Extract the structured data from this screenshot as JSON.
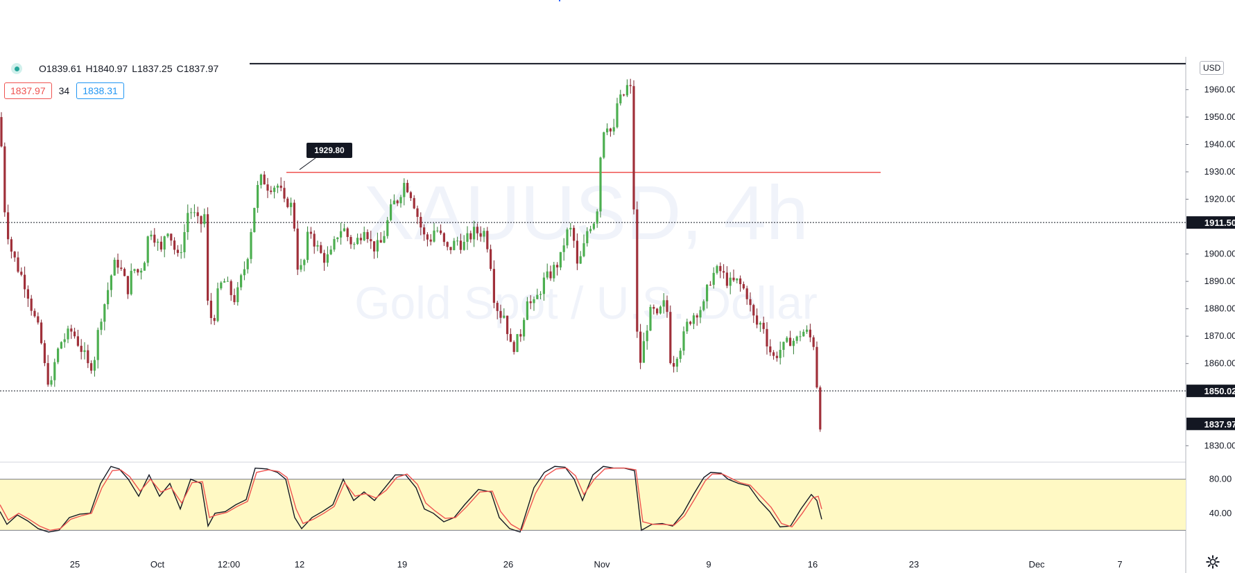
{
  "legend": {
    "open": "O1839.61",
    "high": "H1840.97",
    "low": "L1837.25",
    "close": "C1837.97"
  },
  "quote": {
    "sell": "1837.97",
    "spread": "34",
    "buy": "1838.31"
  },
  "currency_button": "USD",
  "watermark": {
    "symbol": "XAUUSD, 4h",
    "description": "Gold Spot / U.S. Dollar"
  },
  "annotation": {
    "label": "1929.80"
  },
  "price_axis": {
    "ticks": [
      "1960.00",
      "1950.00",
      "1940.00",
      "1930.00",
      "1920.00",
      "1900.00",
      "1890.00",
      "1880.00",
      "1870.00",
      "1860.00",
      "1830.00"
    ],
    "labels": [
      {
        "text": "1911.50",
        "price": 1911.5
      },
      {
        "text": "1850.02",
        "price": 1850.02
      },
      {
        "text": "1837.97",
        "price": 1837.97
      }
    ]
  },
  "osc_axis": {
    "ticks": [
      "80.00",
      "40.00"
    ]
  },
  "time_axis": {
    "labels": [
      "25",
      "Oct",
      "12:00",
      "12",
      "19",
      "26",
      "Nov",
      "9",
      "16",
      "23",
      "Dec",
      "7"
    ]
  },
  "colors": {
    "up": "#26a69a",
    "down": "#ef5350",
    "candle_body_up": "#4caf50",
    "candle_body_down": "#a0303a",
    "band_fill": "#fff9c4",
    "stoch_k": "#131722",
    "stoch_d": "#ef5350",
    "hline_red": "#ef5350"
  },
  "chart_data": {
    "type": "candlestick",
    "price_range": [
      1824,
      1972
    ],
    "osc_range": [
      0,
      100
    ],
    "osc_band": [
      20,
      80
    ],
    "resistance_level": 1929.8,
    "dotted_levels": [
      1911.5,
      1850.02
    ],
    "top_line_level": 1969.5,
    "close_key": [
      [
        0,
        1950
      ],
      [
        6,
        1918
      ],
      [
        14,
        1903
      ],
      [
        24,
        1896
      ],
      [
        38,
        1888
      ],
      [
        48,
        1878
      ],
      [
        58,
        1870
      ],
      [
        66,
        1856
      ],
      [
        74,
        1852
      ],
      [
        80,
        1862
      ],
      [
        88,
        1868
      ],
      [
        96,
        1870
      ],
      [
        104,
        1872
      ],
      [
        112,
        1868
      ],
      [
        120,
        1864
      ],
      [
        128,
        1858
      ],
      [
        136,
        1862
      ],
      [
        144,
        1876
      ],
      [
        152,
        1883
      ],
      [
        160,
        1892
      ],
      [
        168,
        1898
      ],
      [
        176,
        1893
      ],
      [
        184,
        1887
      ],
      [
        192,
        1895
      ],
      [
        200,
        1893
      ],
      [
        208,
        1898
      ],
      [
        216,
        1910
      ],
      [
        224,
        1906
      ],
      [
        232,
        1900
      ],
      [
        240,
        1911
      ],
      [
        248,
        1905
      ],
      [
        256,
        1898
      ],
      [
        264,
        1905
      ],
      [
        272,
        1917
      ],
      [
        280,
        1914
      ],
      [
        288,
        1910
      ],
      [
        296,
        1915
      ],
      [
        300,
        1878
      ],
      [
        308,
        1876
      ],
      [
        316,
        1888
      ],
      [
        324,
        1890
      ],
      [
        332,
        1886
      ],
      [
        340,
        1883
      ],
      [
        348,
        1891
      ],
      [
        356,
        1898
      ],
      [
        364,
        1913
      ],
      [
        370,
        1923
      ],
      [
        378,
        1928
      ],
      [
        386,
        1925
      ],
      [
        394,
        1925
      ],
      [
        402,
        1925
      ],
      [
        410,
        1918
      ],
      [
        418,
        1920
      ],
      [
        426,
        1908
      ],
      [
        430,
        1893
      ],
      [
        438,
        1896
      ],
      [
        446,
        1910
      ],
      [
        454,
        1904
      ],
      [
        462,
        1900
      ],
      [
        470,
        1898
      ],
      [
        478,
        1900
      ],
      [
        486,
        1907
      ],
      [
        494,
        1910
      ],
      [
        502,
        1906
      ],
      [
        510,
        1903
      ],
      [
        518,
        1906
      ],
      [
        526,
        1911
      ],
      [
        534,
        1904
      ],
      [
        542,
        1902
      ],
      [
        550,
        1904
      ],
      [
        558,
        1911
      ],
      [
        566,
        1918
      ],
      [
        574,
        1920
      ],
      [
        582,
        1926
      ],
      [
        590,
        1924
      ],
      [
        598,
        1918
      ],
      [
        604,
        1912
      ],
      [
        612,
        1906
      ],
      [
        620,
        1905
      ],
      [
        628,
        1910
      ],
      [
        636,
        1906
      ],
      [
        644,
        1901
      ],
      [
        652,
        1903
      ],
      [
        660,
        1905
      ],
      [
        668,
        1903
      ],
      [
        676,
        1906
      ],
      [
        684,
        1908
      ],
      [
        692,
        1908
      ],
      [
        700,
        1908
      ],
      [
        708,
        1896
      ],
      [
        712,
        1885
      ],
      [
        720,
        1878
      ],
      [
        728,
        1878
      ],
      [
        736,
        1866
      ],
      [
        744,
        1867
      ],
      [
        752,
        1872
      ],
      [
        760,
        1885
      ],
      [
        768,
        1880
      ],
      [
        776,
        1885
      ],
      [
        784,
        1890
      ],
      [
        792,
        1892
      ],
      [
        800,
        1895
      ],
      [
        808,
        1898
      ],
      [
        814,
        1905
      ],
      [
        820,
        1909
      ],
      [
        826,
        1908
      ],
      [
        832,
        1895
      ],
      [
        840,
        1900
      ],
      [
        848,
        1910
      ],
      [
        856,
        1912
      ],
      [
        862,
        1918
      ],
      [
        868,
        1945
      ],
      [
        876,
        1948
      ],
      [
        884,
        1942
      ],
      [
        890,
        1955
      ],
      [
        898,
        1957
      ],
      [
        906,
        1962
      ],
      [
        912,
        1958
      ],
      [
        916,
        1876
      ],
      [
        924,
        1860
      ],
      [
        932,
        1873
      ],
      [
        940,
        1880
      ],
      [
        948,
        1876
      ],
      [
        956,
        1882
      ],
      [
        962,
        1879
      ],
      [
        968,
        1858
      ],
      [
        976,
        1864
      ],
      [
        984,
        1868
      ],
      [
        992,
        1875
      ],
      [
        1000,
        1878
      ],
      [
        1008,
        1880
      ],
      [
        1016,
        1881
      ],
      [
        1022,
        1890
      ],
      [
        1030,
        1893
      ],
      [
        1038,
        1894
      ],
      [
        1046,
        1891
      ],
      [
        1054,
        1889
      ],
      [
        1062,
        1890
      ],
      [
        1070,
        1888
      ],
      [
        1078,
        1885
      ],
      [
        1084,
        1878
      ],
      [
        1092,
        1874
      ],
      [
        1100,
        1875
      ],
      [
        1108,
        1866
      ],
      [
        1116,
        1862
      ],
      [
        1124,
        1865
      ],
      [
        1132,
        1866
      ],
      [
        1140,
        1869
      ],
      [
        1148,
        1868
      ],
      [
        1156,
        1872
      ],
      [
        1164,
        1871
      ],
      [
        1172,
        1868
      ],
      [
        1176,
        1866
      ],
      [
        1180,
        1839
      ],
      [
        1184,
        1838
      ]
    ],
    "stoch_k": [
      [
        0,
        42
      ],
      [
        10,
        27
      ],
      [
        25,
        38
      ],
      [
        40,
        31
      ],
      [
        55,
        22
      ],
      [
        70,
        18
      ],
      [
        85,
        20
      ],
      [
        100,
        35
      ],
      [
        115,
        39
      ],
      [
        130,
        40
      ],
      [
        145,
        75
      ],
      [
        160,
        95
      ],
      [
        172,
        92
      ],
      [
        185,
        80
      ],
      [
        200,
        60
      ],
      [
        215,
        85
      ],
      [
        230,
        60
      ],
      [
        245,
        75
      ],
      [
        260,
        45
      ],
      [
        275,
        80
      ],
      [
        290,
        75
      ],
      [
        300,
        25
      ],
      [
        310,
        40
      ],
      [
        325,
        42
      ],
      [
        340,
        50
      ],
      [
        355,
        56
      ],
      [
        368,
        93
      ],
      [
        385,
        92
      ],
      [
        400,
        88
      ],
      [
        412,
        80
      ],
      [
        425,
        35
      ],
      [
        435,
        22
      ],
      [
        450,
        35
      ],
      [
        465,
        42
      ],
      [
        480,
        50
      ],
      [
        495,
        80
      ],
      [
        510,
        55
      ],
      [
        525,
        65
      ],
      [
        540,
        55
      ],
      [
        555,
        70
      ],
      [
        570,
        85
      ],
      [
        585,
        85
      ],
      [
        600,
        70
      ],
      [
        612,
        45
      ],
      [
        625,
        40
      ],
      [
        640,
        30
      ],
      [
        655,
        35
      ],
      [
        670,
        50
      ],
      [
        690,
        68
      ],
      [
        708,
        65
      ],
      [
        720,
        35
      ],
      [
        735,
        22
      ],
      [
        750,
        18
      ],
      [
        770,
        70
      ],
      [
        785,
        88
      ],
      [
        800,
        95
      ],
      [
        815,
        94
      ],
      [
        828,
        80
      ],
      [
        840,
        55
      ],
      [
        855,
        85
      ],
      [
        870,
        95
      ],
      [
        885,
        93
      ],
      [
        900,
        93
      ],
      [
        915,
        90
      ],
      [
        925,
        20
      ],
      [
        940,
        27
      ],
      [
        955,
        28
      ],
      [
        970,
        25
      ],
      [
        985,
        40
      ],
      [
        1000,
        62
      ],
      [
        1015,
        82
      ],
      [
        1025,
        88
      ],
      [
        1040,
        87
      ],
      [
        1050,
        80
      ],
      [
        1065,
        75
      ],
      [
        1080,
        72
      ],
      [
        1095,
        55
      ],
      [
        1110,
        42
      ],
      [
        1125,
        24
      ],
      [
        1140,
        25
      ],
      [
        1155,
        45
      ],
      [
        1170,
        62
      ],
      [
        1178,
        55
      ],
      [
        1185,
        33
      ]
    ],
    "stoch_d": [
      [
        0,
        50
      ],
      [
        12,
        32
      ],
      [
        27,
        40
      ],
      [
        42,
        33
      ],
      [
        57,
        25
      ],
      [
        72,
        20
      ],
      [
        87,
        22
      ],
      [
        102,
        33
      ],
      [
        117,
        37
      ],
      [
        132,
        40
      ],
      [
        147,
        70
      ],
      [
        162,
        90
      ],
      [
        174,
        91
      ],
      [
        187,
        83
      ],
      [
        202,
        66
      ],
      [
        217,
        80
      ],
      [
        232,
        65
      ],
      [
        247,
        70
      ],
      [
        262,
        52
      ],
      [
        277,
        76
      ],
      [
        292,
        77
      ],
      [
        302,
        35
      ],
      [
        312,
        38
      ],
      [
        327,
        41
      ],
      [
        342,
        48
      ],
      [
        357,
        54
      ],
      [
        370,
        88
      ],
      [
        387,
        91
      ],
      [
        402,
        89
      ],
      [
        414,
        82
      ],
      [
        427,
        45
      ],
      [
        437,
        28
      ],
      [
        452,
        33
      ],
      [
        467,
        40
      ],
      [
        482,
        48
      ],
      [
        497,
        76
      ],
      [
        512,
        60
      ],
      [
        527,
        63
      ],
      [
        542,
        58
      ],
      [
        557,
        67
      ],
      [
        572,
        82
      ],
      [
        587,
        86
      ],
      [
        602,
        74
      ],
      [
        614,
        52
      ],
      [
        627,
        43
      ],
      [
        642,
        34
      ],
      [
        657,
        35
      ],
      [
        672,
        47
      ],
      [
        692,
        65
      ],
      [
        710,
        66
      ],
      [
        722,
        42
      ],
      [
        737,
        27
      ],
      [
        752,
        20
      ],
      [
        772,
        63
      ],
      [
        787,
        84
      ],
      [
        802,
        92
      ],
      [
        817,
        93
      ],
      [
        830,
        84
      ],
      [
        842,
        62
      ],
      [
        857,
        80
      ],
      [
        872,
        92
      ],
      [
        887,
        93
      ],
      [
        902,
        93
      ],
      [
        917,
        91
      ],
      [
        927,
        30
      ],
      [
        942,
        27
      ],
      [
        957,
        27
      ],
      [
        972,
        26
      ],
      [
        987,
        37
      ],
      [
        1002,
        57
      ],
      [
        1017,
        78
      ],
      [
        1027,
        86
      ],
      [
        1042,
        86
      ],
      [
        1052,
        82
      ],
      [
        1067,
        76
      ],
      [
        1082,
        73
      ],
      [
        1097,
        60
      ],
      [
        1112,
        47
      ],
      [
        1127,
        28
      ],
      [
        1142,
        24
      ],
      [
        1157,
        40
      ],
      [
        1172,
        58
      ],
      [
        1180,
        60
      ],
      [
        1185,
        45
      ]
    ]
  }
}
